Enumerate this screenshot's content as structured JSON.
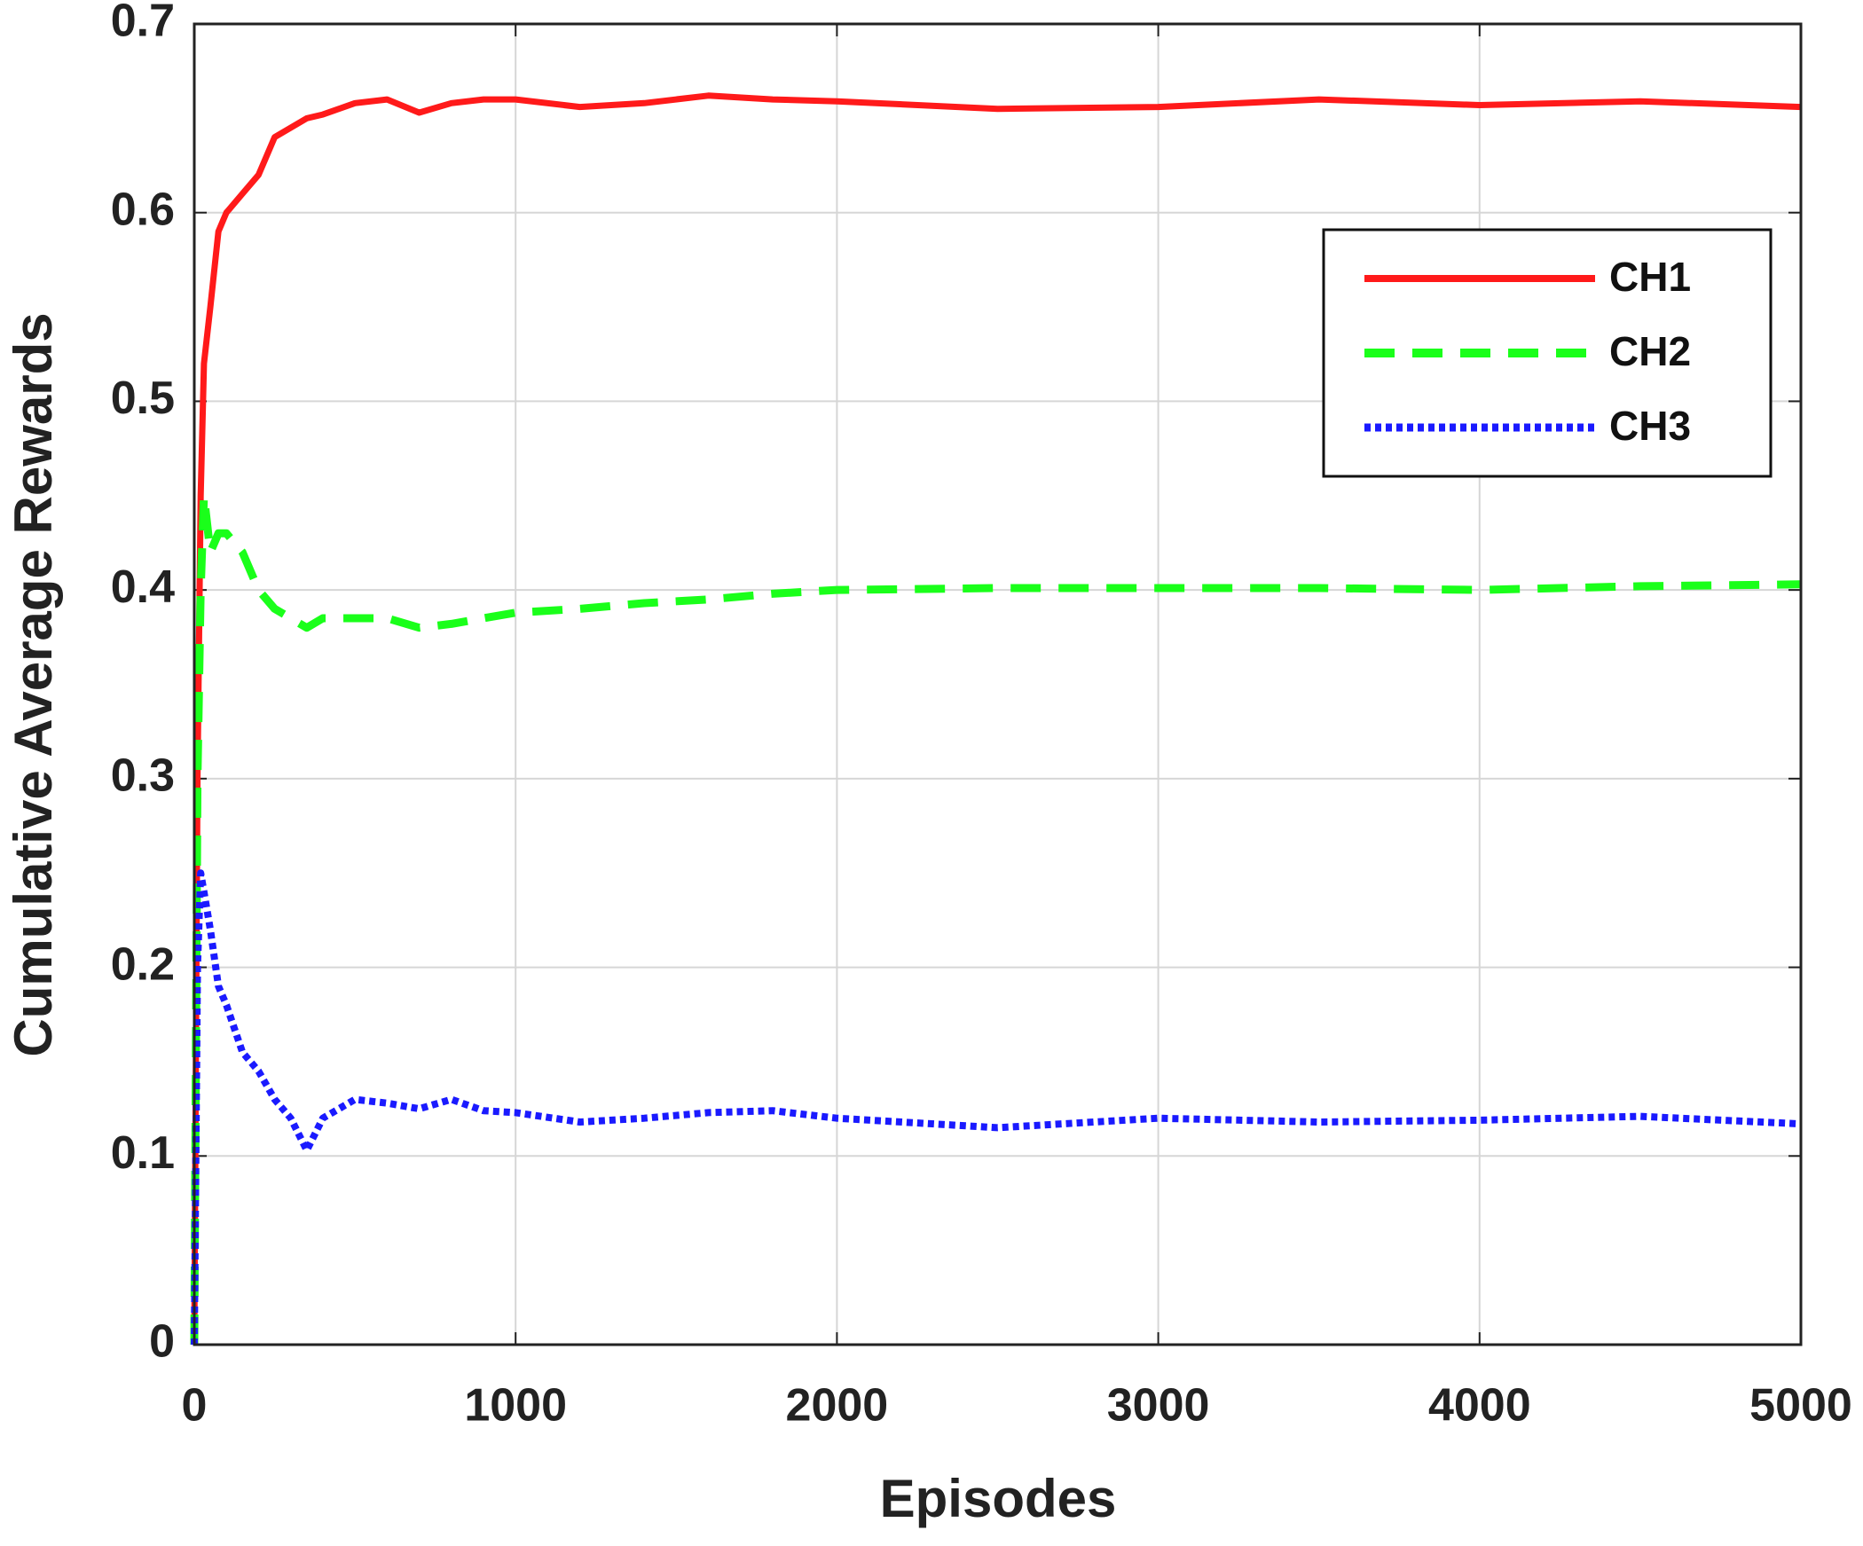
{
  "chart_data": {
    "type": "line",
    "x_label": "Episodes",
    "y_label": "Cumulative Average Rewards",
    "x": [
      0,
      10,
      20,
      30,
      50,
      75,
      100,
      150,
      200,
      250,
      300,
      350,
      400,
      500,
      600,
      700,
      800,
      900,
      1000,
      1200,
      1400,
      1600,
      1800,
      2000,
      2500,
      3000,
      3500,
      4000,
      4500,
      5000
    ],
    "series": [
      {
        "name": "CH1",
        "color": "#ff1a1a",
        "linestyle": "solid",
        "values": [
          0,
          0.3,
          0.45,
          0.52,
          0.55,
          0.59,
          0.6,
          0.61,
          0.62,
          0.64,
          0.645,
          0.65,
          0.652,
          0.658,
          0.66,
          0.653,
          0.658,
          0.66,
          0.66,
          0.656,
          0.658,
          0.662,
          0.66,
          0.659,
          0.655,
          0.656,
          0.66,
          0.657,
          0.659,
          0.656
        ]
      },
      {
        "name": "CH2",
        "color": "#1aff1a",
        "linestyle": "dashed",
        "values": [
          0,
          0.3,
          0.4,
          0.45,
          0.42,
          0.43,
          0.43,
          0.42,
          0.4,
          0.39,
          0.385,
          0.38,
          0.385,
          0.385,
          0.385,
          0.38,
          0.382,
          0.385,
          0.388,
          0.39,
          0.393,
          0.395,
          0.398,
          0.4,
          0.401,
          0.401,
          0.401,
          0.4,
          0.402,
          0.403
        ]
      },
      {
        "name": "CH3",
        "color": "#1a1aff",
        "linestyle": "dotted",
        "values": [
          0,
          0.2,
          0.25,
          0.24,
          0.22,
          0.19,
          0.18,
          0.155,
          0.145,
          0.13,
          0.12,
          0.103,
          0.12,
          0.13,
          0.128,
          0.125,
          0.13,
          0.124,
          0.123,
          0.118,
          0.12,
          0.123,
          0.124,
          0.12,
          0.115,
          0.12,
          0.118,
          0.119,
          0.121,
          0.117
        ]
      }
    ],
    "xlim": [
      0,
      5000
    ],
    "ylim": [
      0,
      0.7
    ],
    "xticks": [
      0,
      1000,
      2000,
      3000,
      4000,
      5000
    ],
    "yticks": [
      0,
      0.1,
      0.2,
      0.3,
      0.4,
      0.5,
      0.6,
      0.7
    ],
    "grid": true,
    "legend": "upper right"
  }
}
